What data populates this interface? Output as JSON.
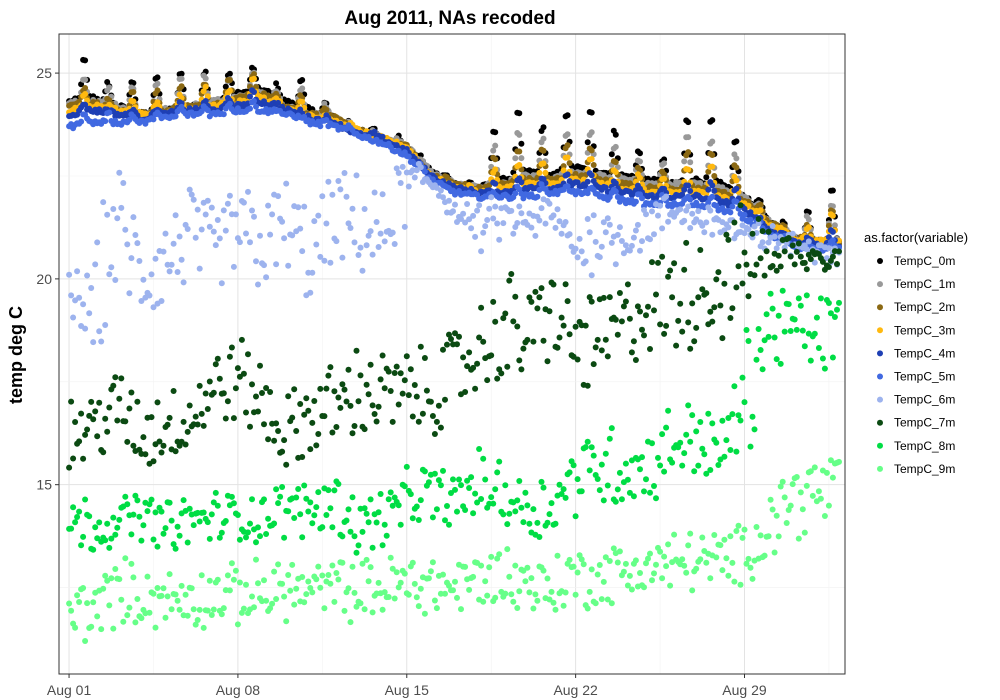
{
  "chart_data": {
    "type": "scatter",
    "title": "Aug 2011, NAs recoded",
    "xlabel": "",
    "ylabel": "temp deg C",
    "x_ticks": [
      "Aug 01",
      "Aug 08",
      "Aug 15",
      "Aug 22",
      "Aug 29"
    ],
    "y_ticks": [
      "15",
      "20",
      "25"
    ],
    "xlim": [
      "2011-07-31T14:00",
      "2011-09-02T04:00"
    ],
    "ylim": [
      10.4,
      25.95
    ],
    "grid": true,
    "legend": {
      "title": "as.factor(variable)",
      "position": "right"
    },
    "series": [
      {
        "name": "TempC_0m",
        "color": "#000000",
        "daily_mean": [
          24.3,
          24.4,
          24.2,
          24.0,
          24.1,
          24.2,
          24.3,
          24.5,
          24.6,
          24.3,
          24.1,
          23.9,
          23.6,
          23.4,
          23.2,
          22.6,
          22.3,
          22.2,
          22.4,
          22.6,
          22.5,
          22.7,
          22.6,
          22.5,
          22.4,
          22.3,
          22.4,
          22.3,
          22.0,
          21.4,
          21.0,
          20.9
        ],
        "daily_peak": [
          25.3,
          24.9,
          25.0,
          24.9,
          25.0,
          25.0,
          24.9,
          25.1,
          24.9,
          25.0,
          24.4,
          24.0,
          23.8,
          23.6,
          23.3,
          22.7,
          22.4,
          23.6,
          24.0,
          23.8,
          24.0,
          24.2,
          23.7,
          23.2,
          23.0,
          23.9,
          24.0,
          23.6,
          22.3,
          21.6,
          21.8,
          22.3
        ]
      },
      {
        "name": "TempC_1m",
        "color": "#999999",
        "daily_mean": [
          24.3,
          24.3,
          24.2,
          24.0,
          24.1,
          24.2,
          24.3,
          24.4,
          24.5,
          24.2,
          24.0,
          23.9,
          23.6,
          23.4,
          23.2,
          22.6,
          22.3,
          22.2,
          22.3,
          22.5,
          22.4,
          22.6,
          22.5,
          22.4,
          22.3,
          22.3,
          22.3,
          22.2,
          22.0,
          21.4,
          21.0,
          20.9
        ],
        "daily_peak": [
          24.9,
          24.7,
          24.8,
          24.7,
          24.8,
          24.9,
          24.8,
          25.0,
          24.8,
          24.8,
          24.3,
          24.0,
          23.7,
          23.5,
          23.3,
          22.6,
          22.3,
          23.2,
          23.5,
          23.5,
          23.5,
          23.7,
          23.3,
          23.0,
          22.8,
          23.5,
          23.5,
          23.2,
          22.2,
          21.5,
          21.6,
          21.9
        ]
      },
      {
        "name": "TempC_2m",
        "color": "#8B6914",
        "daily_mean": [
          24.2,
          24.3,
          24.1,
          24.0,
          24.1,
          24.2,
          24.2,
          24.4,
          24.5,
          24.2,
          24.0,
          23.9,
          23.6,
          23.4,
          23.2,
          22.5,
          22.3,
          22.2,
          22.3,
          22.4,
          22.4,
          22.5,
          22.4,
          22.3,
          22.2,
          22.2,
          22.2,
          22.1,
          21.9,
          21.4,
          21.0,
          20.9
        ],
        "daily_peak": [
          24.6,
          24.5,
          24.6,
          24.5,
          24.6,
          24.8,
          24.7,
          24.9,
          24.7,
          24.6,
          24.2,
          23.9,
          23.6,
          23.4,
          23.2,
          22.6,
          22.3,
          22.9,
          23.1,
          23.2,
          23.2,
          23.3,
          23.0,
          22.8,
          22.6,
          23.1,
          23.2,
          22.9,
          22.1,
          21.5,
          21.4,
          21.7
        ]
      },
      {
        "name": "TempC_3m",
        "color": "#FFB90F",
        "daily_mean": [
          24.1,
          24.2,
          24.1,
          24.0,
          24.0,
          24.1,
          24.2,
          24.3,
          24.4,
          24.1,
          24.0,
          23.8,
          23.6,
          23.4,
          23.2,
          22.5,
          22.2,
          22.1,
          22.2,
          22.3,
          22.3,
          22.4,
          22.3,
          22.2,
          22.1,
          22.1,
          22.1,
          22.0,
          21.8,
          21.3,
          21.0,
          20.9
        ],
        "daily_peak": [
          24.4,
          24.3,
          24.4,
          24.3,
          24.4,
          24.6,
          24.5,
          24.8,
          24.6,
          24.4,
          24.1,
          23.9,
          23.6,
          23.4,
          23.2,
          22.5,
          22.3,
          22.6,
          22.7,
          22.9,
          22.9,
          23.0,
          22.7,
          22.6,
          22.4,
          22.7,
          22.9,
          22.6,
          22.0,
          21.4,
          21.3,
          21.6
        ]
      },
      {
        "name": "TempC_4m",
        "color": "#1E3FB4",
        "daily_mean": [
          24.0,
          24.1,
          24.0,
          23.9,
          24.0,
          24.1,
          24.1,
          24.2,
          24.3,
          24.1,
          23.9,
          23.8,
          23.5,
          23.4,
          23.1,
          22.5,
          22.2,
          22.1,
          22.1,
          22.2,
          22.2,
          22.3,
          22.2,
          22.1,
          22.0,
          22.0,
          22.0,
          21.9,
          21.7,
          21.2,
          20.9,
          20.8
        ],
        "daily_peak": [
          24.2,
          24.2,
          24.2,
          24.1,
          24.2,
          24.3,
          24.3,
          24.5,
          24.4,
          24.2,
          24.0,
          23.8,
          23.6,
          23.4,
          23.1,
          22.5,
          22.2,
          22.3,
          22.4,
          22.5,
          22.5,
          22.6,
          22.4,
          22.3,
          22.2,
          22.3,
          22.4,
          22.3,
          21.8,
          21.3,
          21.1,
          21.2
        ]
      },
      {
        "name": "TempC_5m",
        "color": "#4169E1",
        "daily_mean": [
          23.7,
          23.8,
          23.8,
          23.8,
          23.9,
          24.0,
          24.0,
          24.1,
          24.1,
          24.0,
          23.8,
          23.7,
          23.5,
          23.3,
          23.0,
          22.4,
          22.1,
          22.0,
          22.0,
          22.0,
          22.1,
          22.1,
          22.0,
          21.9,
          21.8,
          21.8,
          21.8,
          21.7,
          21.5,
          21.1,
          20.8,
          20.7
        ],
        "daily_peak": [
          24.0,
          24.0,
          24.0,
          24.0,
          24.1,
          24.2,
          24.2,
          24.3,
          24.2,
          24.1,
          23.9,
          23.8,
          23.5,
          23.3,
          23.1,
          22.4,
          22.1,
          22.1,
          22.2,
          22.2,
          22.3,
          22.3,
          22.2,
          22.1,
          22.0,
          22.0,
          22.1,
          22.0,
          21.7,
          21.2,
          20.9,
          20.9
        ]
      },
      {
        "name": "TempC_6m",
        "color": "#9DB3EE",
        "daily_mean": [
          19.6,
          19.2,
          21.5,
          20.0,
          20.4,
          21.1,
          20.6,
          21.2,
          20.8,
          21.3,
          20.5,
          21.4,
          21.3,
          21.0,
          22.3,
          22.4,
          21.6,
          21.2,
          21.5,
          21.3,
          21.6,
          20.7,
          21.1,
          21.0,
          21.3,
          21.6,
          21.5,
          21.4,
          21.0,
          21.0,
          20.8,
          20.7
        ],
        "daily_peak": [
          20.6,
          21.2,
          23.2,
          21.4,
          21.8,
          22.5,
          22.0,
          22.6,
          22.2,
          22.7,
          21.9,
          22.8,
          22.6,
          22.2,
          23.0,
          22.6,
          22.0,
          21.8,
          22.0,
          21.8,
          22.0,
          21.6,
          21.8,
          21.7,
          21.8,
          22.0,
          21.9,
          21.8,
          21.4,
          21.2,
          21.0,
          20.9
        ]
      },
      {
        "name": "TempC_7m",
        "color": "#0B4A12",
        "daily_mean": [
          16.2,
          16.4,
          16.9,
          16.2,
          16.5,
          16.6,
          17.3,
          17.6,
          17.0,
          16.2,
          16.7,
          16.9,
          17.3,
          17.2,
          17.2,
          17.3,
          17.7,
          18.3,
          18.7,
          18.7,
          19.2,
          18.4,
          18.5,
          18.9,
          19.3,
          19.5,
          19.8,
          19.8,
          20.4,
          20.7,
          20.6,
          20.6
        ],
        "daily_peak": [
          17.2,
          17.4,
          18.0,
          17.4,
          17.5,
          17.6,
          18.5,
          18.8,
          18.2,
          17.3,
          17.9,
          18.1,
          18.6,
          18.4,
          18.4,
          18.6,
          19.0,
          19.6,
          20.5,
          20.0,
          20.6,
          19.8,
          19.8,
          20.2,
          20.8,
          21.2,
          21.4,
          21.5,
          21.6,
          21.4,
          21.0,
          21.0
        ]
      },
      {
        "name": "TempC_8m",
        "color": "#00DD44",
        "daily_mean": [
          14.1,
          14.0,
          14.1,
          14.3,
          14.0,
          14.1,
          14.2,
          14.2,
          14.2,
          14.4,
          14.4,
          14.6,
          14.0,
          14.2,
          14.6,
          14.8,
          14.6,
          15.0,
          14.8,
          14.4,
          14.5,
          15.2,
          15.5,
          15.4,
          15.4,
          16.0,
          16.2,
          15.7,
          17.1,
          18.9,
          18.8,
          18.7
        ],
        "daily_peak": [
          14.8,
          14.6,
          14.7,
          14.9,
          14.6,
          14.7,
          14.9,
          14.9,
          14.9,
          15.1,
          15.2,
          15.4,
          14.8,
          14.9,
          15.4,
          15.6,
          15.4,
          15.9,
          15.7,
          15.3,
          15.4,
          16.2,
          16.7,
          16.4,
          16.5,
          17.0,
          17.2,
          16.8,
          19.0,
          20.0,
          19.9,
          19.9
        ]
      },
      {
        "name": "TempC_9m",
        "color": "#66FF88",
        "daily_mean": [
          11.9,
          12.0,
          12.4,
          12.3,
          12.2,
          12.2,
          12.3,
          12.3,
          12.4,
          12.5,
          12.4,
          12.5,
          12.4,
          12.5,
          12.6,
          12.6,
          12.5,
          12.7,
          12.8,
          12.6,
          12.5,
          12.8,
          12.7,
          12.9,
          13.0,
          13.1,
          13.2,
          13.1,
          13.3,
          14.0,
          14.7,
          14.8
        ],
        "daily_peak": [
          12.8,
          12.8,
          13.3,
          13.1,
          13.0,
          13.0,
          13.1,
          13.1,
          13.2,
          13.3,
          13.2,
          13.3,
          13.2,
          13.3,
          13.4,
          13.4,
          13.3,
          13.5,
          13.7,
          13.4,
          13.3,
          13.6,
          13.5,
          13.7,
          13.8,
          13.9,
          14.0,
          13.9,
          14.1,
          15.0,
          15.8,
          16.0
        ]
      }
    ]
  }
}
